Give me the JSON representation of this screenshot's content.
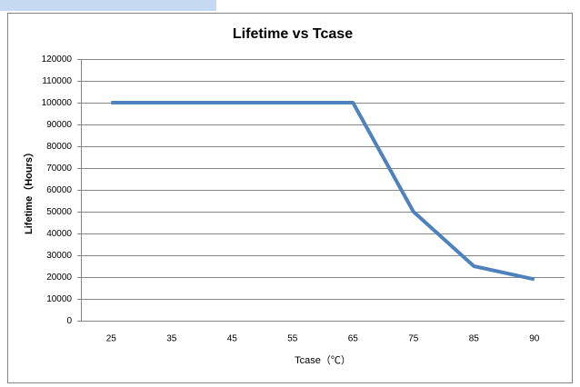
{
  "chart_data": {
    "type": "line",
    "title": "Lifetime vs Tcase",
    "x_label": "Tcase（℃）",
    "y_label": "Lifetime（Hours）",
    "categories": [
      "25",
      "35",
      "45",
      "55",
      "65",
      "75",
      "85",
      "90"
    ],
    "series": [
      {
        "name": "Lifetime",
        "color": "#4f81bd",
        "values": [
          100000,
          100000,
          100000,
          100000,
          100000,
          50000,
          25000,
          19000
        ]
      }
    ],
    "ylim": [
      0,
      120000
    ],
    "yticks": [
      0,
      10000,
      20000,
      30000,
      40000,
      50000,
      60000,
      70000,
      80000,
      90000,
      100000,
      110000,
      120000
    ],
    "grid": true
  }
}
